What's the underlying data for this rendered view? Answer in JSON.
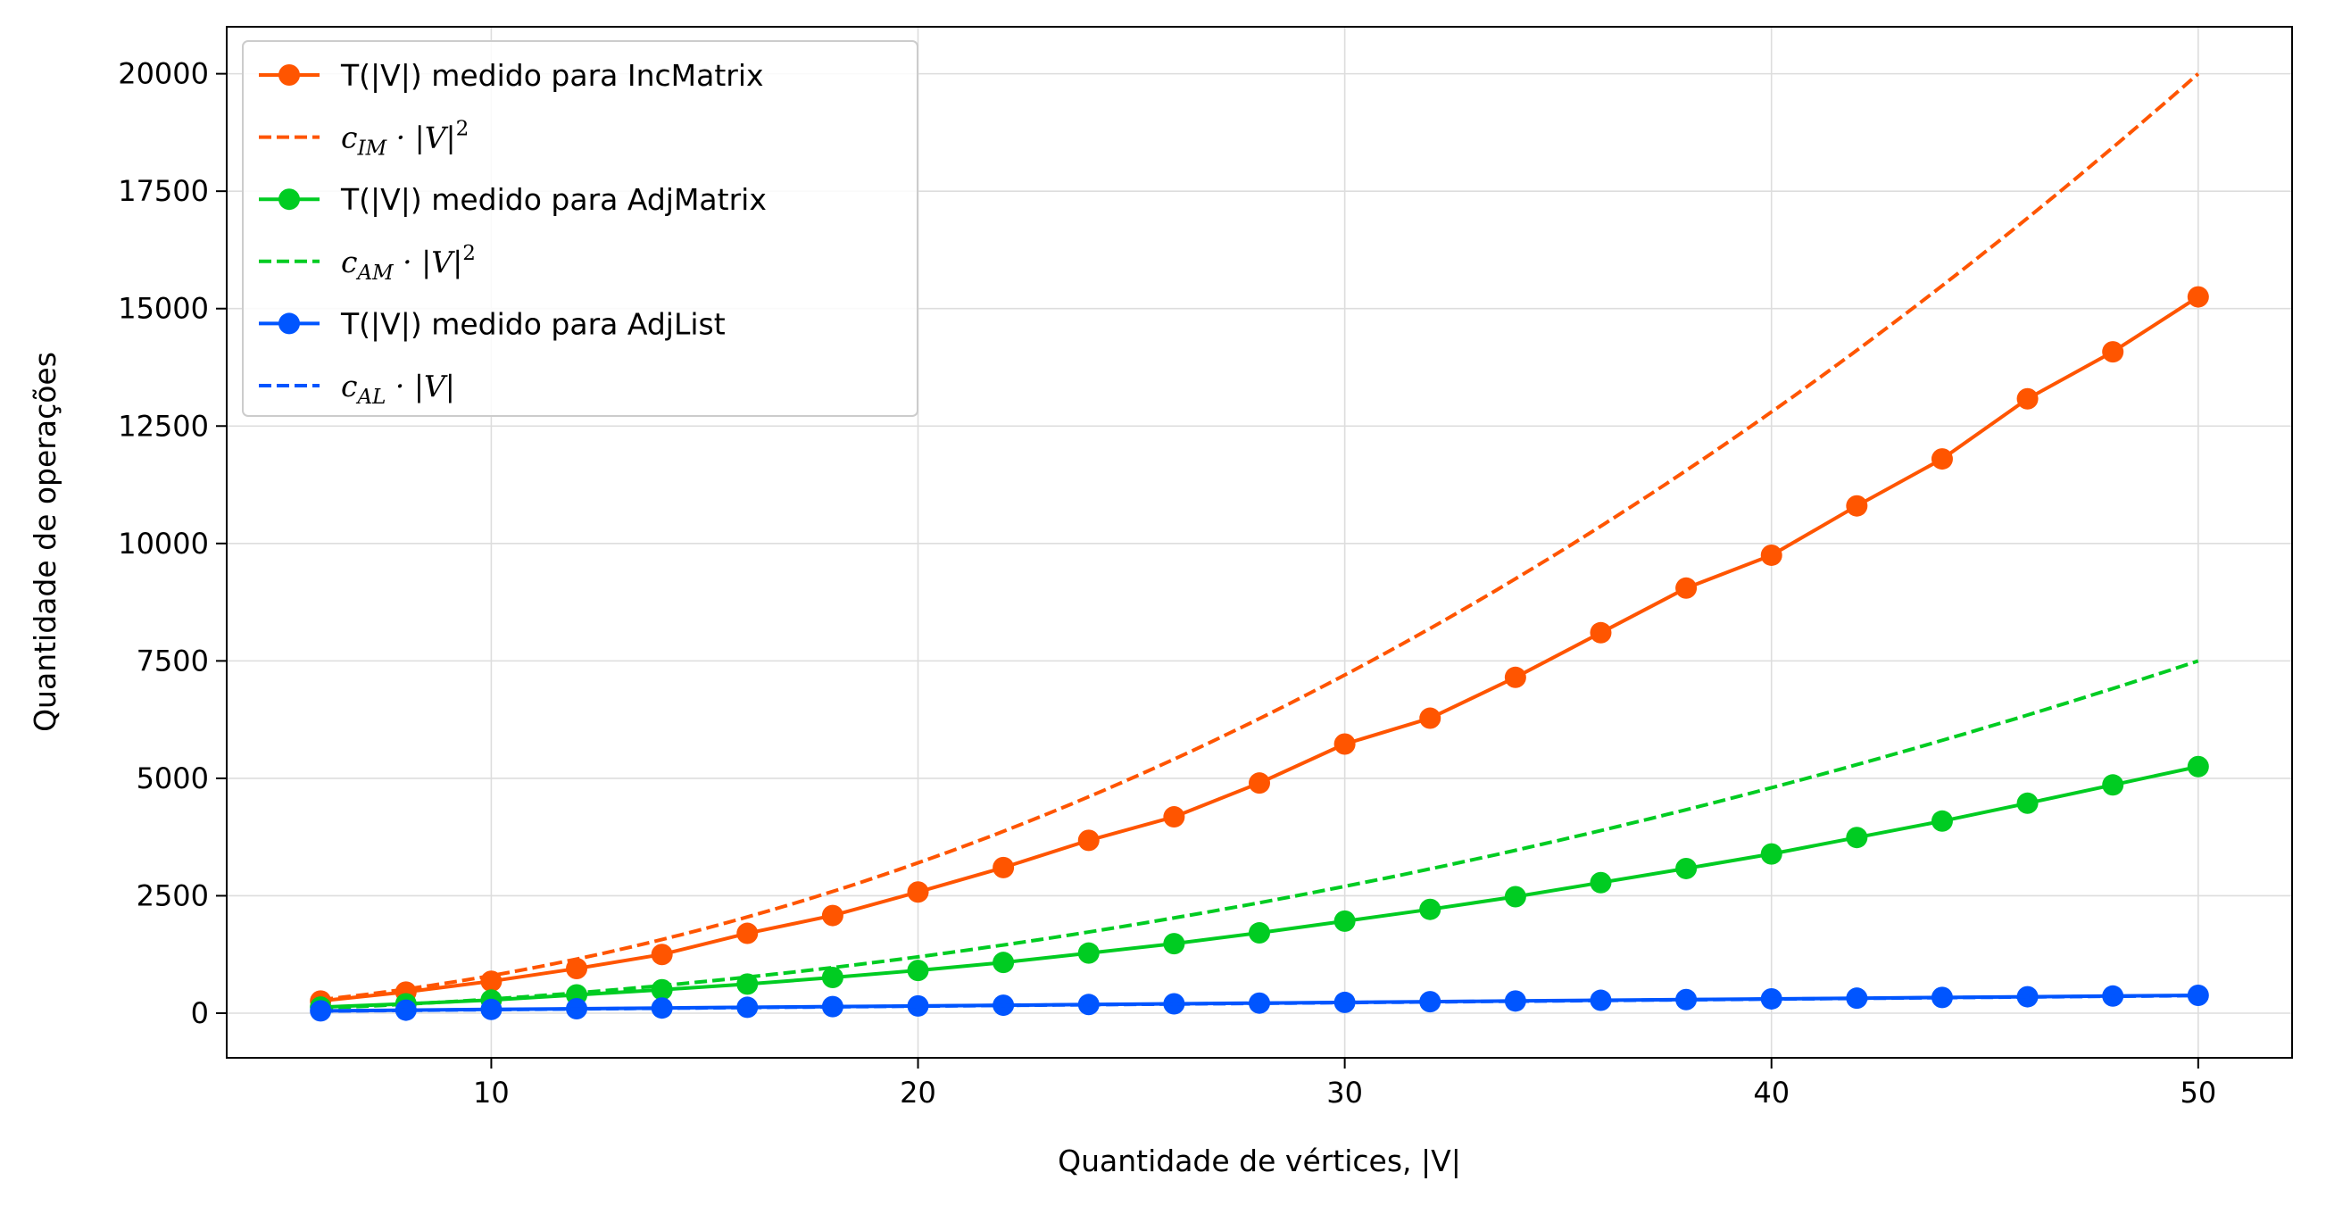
{
  "chart_data": {
    "type": "line",
    "xlabel": "Quantidade de vértices, |V|",
    "ylabel": "Quantidade de operações",
    "xlim": [
      3.8,
      52.2
    ],
    "ylim": [
      -950,
      21000
    ],
    "xticks": [
      10,
      20,
      30,
      40,
      50
    ],
    "yticks": [
      0,
      2500,
      5000,
      7500,
      10000,
      12500,
      15000,
      17500,
      20000
    ],
    "grid": true,
    "legend_position": "top-left",
    "x": [
      6,
      8,
      10,
      12,
      14,
      16,
      18,
      20,
      22,
      24,
      26,
      28,
      30,
      32,
      34,
      36,
      38,
      40,
      42,
      44,
      46,
      48,
      50
    ],
    "series": [
      {
        "name": "T(|V|) medido para IncMatrix",
        "color": "#ff5500",
        "style": "solid-markers",
        "values": [
          260,
          450,
          680,
          950,
          1250,
          1700,
          2080,
          2580,
          3100,
          3680,
          4180,
          4900,
          5730,
          6280,
          7150,
          8100,
          9050,
          9750,
          10800,
          11800,
          13080,
          14080,
          15250
        ]
      },
      {
        "name": "c_IM · |V|²",
        "legend_base": "c",
        "legend_sub": "IM",
        "legend_rest": " · |V|",
        "legend_sup": "2",
        "color": "#ff5500",
        "style": "dashed",
        "formula": "8*x^2",
        "coef": 8,
        "power": 2
      },
      {
        "name": "T(|V|) medido para AdjMatrix",
        "color": "#00cc22",
        "style": "solid-markers",
        "values": [
          130,
          200,
          280,
          390,
          500,
          620,
          760,
          910,
          1080,
          1280,
          1480,
          1710,
          1960,
          2210,
          2480,
          2780,
          3080,
          3390,
          3740,
          4090,
          4470,
          4860,
          5250
        ]
      },
      {
        "name": "c_AM · |V|²",
        "legend_base": "c",
        "legend_sub": "AM",
        "legend_rest": " · |V|",
        "legend_sup": "2",
        "color": "#00cc22",
        "style": "dashed",
        "formula": "3*x^2",
        "coef": 3,
        "power": 2
      },
      {
        "name": "T(|V|) medido para AdjList",
        "color": "#0055ff",
        "style": "solid-markers",
        "values": [
          50,
          65,
          80,
          95,
          110,
          125,
          140,
          155,
          170,
          185,
          200,
          215,
          230,
          245,
          260,
          275,
          290,
          305,
          320,
          335,
          350,
          365,
          380
        ]
      },
      {
        "name": "c_AL · |V|",
        "legend_base": "c",
        "legend_sub": "AL",
        "legend_rest": " · |V|",
        "legend_sup": "",
        "color": "#0055ff",
        "style": "dashed",
        "formula": "7.5*x",
        "coef": 7.5,
        "power": 1
      }
    ]
  }
}
